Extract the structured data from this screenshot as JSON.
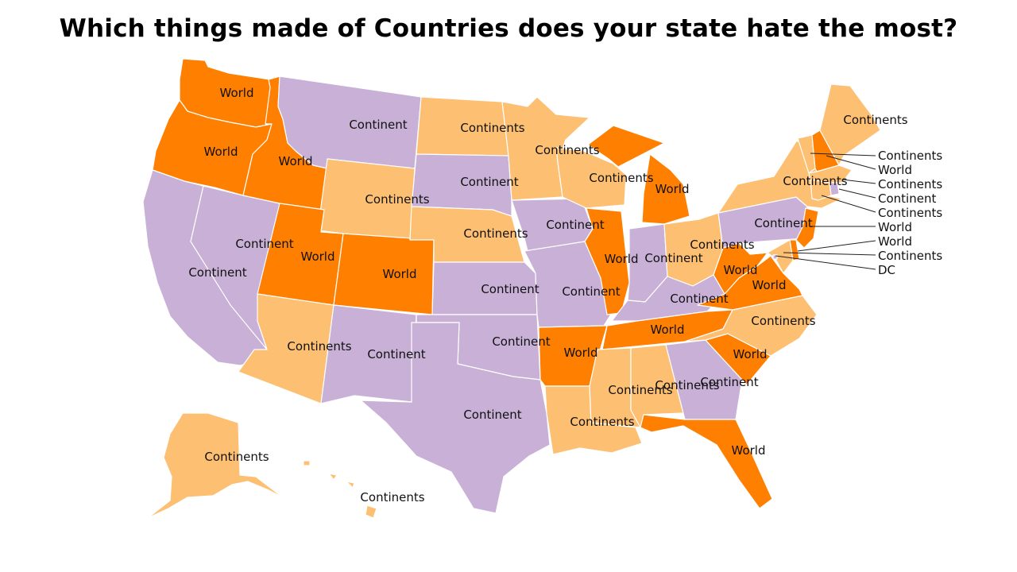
{
  "title": "Which things made of Countries does your state hate the most?",
  "colors": {
    "World": "#ff7f00",
    "Continent": "#c8b0d6",
    "Continents": "#fdbf72"
  },
  "states": [
    {
      "id": "WA",
      "value": "World"
    },
    {
      "id": "OR",
      "value": "World"
    },
    {
      "id": "CA",
      "value": "Continent"
    },
    {
      "id": "NV",
      "value": "Continent"
    },
    {
      "id": "ID",
      "value": "World"
    },
    {
      "id": "MT",
      "value": "Continent"
    },
    {
      "id": "WY",
      "value": "Continents"
    },
    {
      "id": "UT",
      "value": "World"
    },
    {
      "id": "CO",
      "value": "World"
    },
    {
      "id": "AZ",
      "value": "Continents"
    },
    {
      "id": "NM",
      "value": "Continent"
    },
    {
      "id": "ND",
      "value": "Continents"
    },
    {
      "id": "SD",
      "value": "Continent"
    },
    {
      "id": "NE",
      "value": "Continents"
    },
    {
      "id": "KS",
      "value": "Continent"
    },
    {
      "id": "OK",
      "value": "Continent"
    },
    {
      "id": "TX",
      "value": "Continent"
    },
    {
      "id": "MN",
      "value": "Continents"
    },
    {
      "id": "IA",
      "value": "Continent"
    },
    {
      "id": "MO",
      "value": "Continent"
    },
    {
      "id": "AR",
      "value": "World"
    },
    {
      "id": "LA",
      "value": "Continents"
    },
    {
      "id": "WI",
      "value": "Continents"
    },
    {
      "id": "IL",
      "value": "World"
    },
    {
      "id": "MI",
      "value": "World"
    },
    {
      "id": "IN",
      "value": "Continent"
    },
    {
      "id": "OH",
      "value": "Continents"
    },
    {
      "id": "KY",
      "value": "Continent"
    },
    {
      "id": "TN",
      "value": "World"
    },
    {
      "id": "MS",
      "value": "Continents"
    },
    {
      "id": "AL",
      "value": "Continents"
    },
    {
      "id": "GA",
      "value": "Continent"
    },
    {
      "id": "FL",
      "value": "World"
    },
    {
      "id": "SC",
      "value": "World"
    },
    {
      "id": "NC",
      "value": "Continents"
    },
    {
      "id": "VA",
      "value": "World"
    },
    {
      "id": "WV",
      "value": "World"
    },
    {
      "id": "PA",
      "value": "Continent"
    },
    {
      "id": "NY",
      "value": "Continents"
    },
    {
      "id": "ME",
      "value": "Continents"
    },
    {
      "id": "VT",
      "value": "Continents"
    },
    {
      "id": "NH",
      "value": "World"
    },
    {
      "id": "MA",
      "value": "Continents"
    },
    {
      "id": "RI",
      "value": "Continent"
    },
    {
      "id": "CT",
      "value": "Continents"
    },
    {
      "id": "NJ",
      "value": "World"
    },
    {
      "id": "DE",
      "value": "World"
    },
    {
      "id": "MD",
      "value": "Continents"
    },
    {
      "id": "DC",
      "value": "DC"
    },
    {
      "id": "AK",
      "value": "Continents"
    },
    {
      "id": "HI",
      "value": "Continents"
    }
  ],
  "callouts": [
    {
      "id": "VT",
      "text": "Continents"
    },
    {
      "id": "NH",
      "text": "World"
    },
    {
      "id": "MA",
      "text": "Continents"
    },
    {
      "id": "RI",
      "text": "Continent"
    },
    {
      "id": "CT",
      "text": "Continents"
    },
    {
      "id": "NJ",
      "text": "World"
    },
    {
      "id": "DE",
      "text": "World"
    },
    {
      "id": "MD",
      "text": "Continents"
    },
    {
      "id": "DC",
      "text": "DC"
    }
  ]
}
